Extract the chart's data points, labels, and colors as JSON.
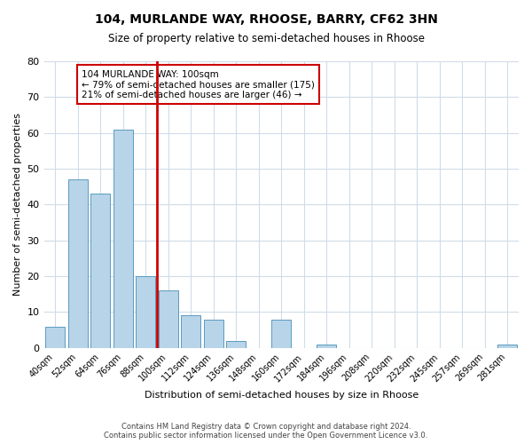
{
  "title": "104, MURLANDE WAY, RHOOSE, BARRY, CF62 3HN",
  "subtitle": "Size of property relative to semi-detached houses in Rhoose",
  "xlabel": "Distribution of semi-detached houses by size in Rhoose",
  "ylabel": "Number of semi-detached properties",
  "bar_labels": [
    "40sqm",
    "52sqm",
    "64sqm",
    "76sqm",
    "88sqm",
    "100sqm",
    "112sqm",
    "124sqm",
    "136sqm",
    "148sqm",
    "160sqm",
    "172sqm",
    "184sqm",
    "196sqm",
    "208sqm",
    "220sqm",
    "232sqm",
    "245sqm",
    "257sqm",
    "269sqm",
    "281sqm"
  ],
  "bar_values": [
    6,
    47,
    43,
    61,
    20,
    16,
    9,
    8,
    2,
    0,
    8,
    0,
    1,
    0,
    0,
    0,
    0,
    0,
    0,
    0,
    1
  ],
  "highlight_index": 5,
  "highlight_label": "100sqm",
  "bar_color": "#b8d4e8",
  "bar_edge_color": "#5a9bbf",
  "highlight_line_color": "#cc0000",
  "annotation_title": "104 MURLANDE WAY: 100sqm",
  "annotation_line1": "← 79% of semi-detached houses are smaller (175)",
  "annotation_line2": "21% of semi-detached houses are larger (46) →",
  "annotation_box_edge": "#cc0000",
  "ylim": [
    0,
    80
  ],
  "yticks": [
    0,
    10,
    20,
    30,
    40,
    50,
    60,
    70,
    80
  ],
  "footer_line1": "Contains HM Land Registry data © Crown copyright and database right 2024.",
  "footer_line2": "Contains public sector information licensed under the Open Government Licence v3.0.",
  "background_color": "#ffffff",
  "grid_color": "#d0dce8"
}
